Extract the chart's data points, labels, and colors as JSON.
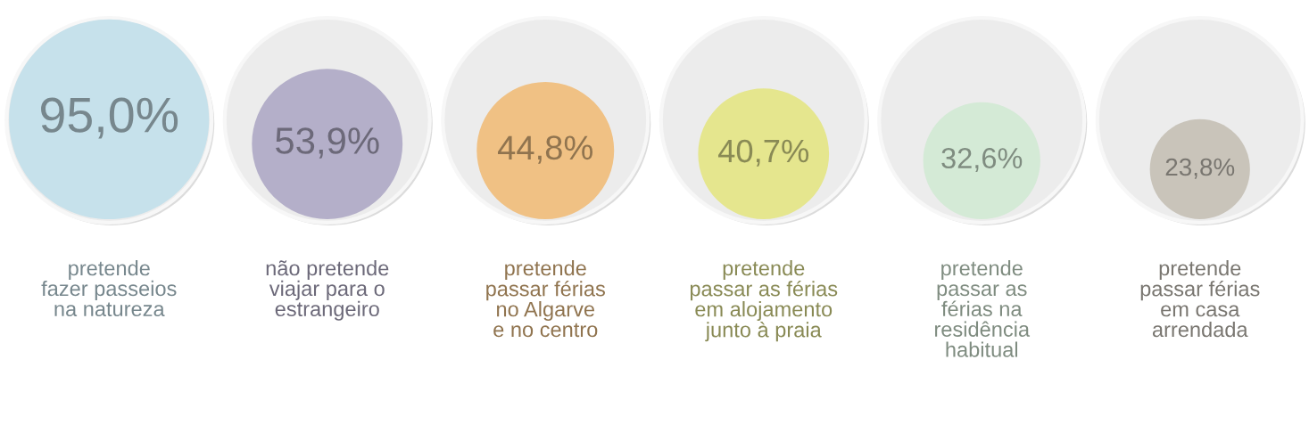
{
  "chart_data": {
    "type": "other",
    "categories": [
      "pretende\nfazer passeios\nna natureza",
      "não pretende\nviajar para o\nestrangeiro",
      "pretende\npassar férias\nno Algarve\ne no centro",
      "pretende\npassar as férias\nem alojamento\njunto à praia",
      "pretende\npassar as\nférias na\nresidência\nhabitual",
      "pretende\npassar férias\nem casa\narrendada"
    ],
    "values": [
      95.0,
      53.9,
      44.8,
      40.7,
      32.6,
      23.8
    ],
    "value_labels": [
      "95,0%",
      "53,9%",
      "44,8%",
      "40,7%",
      "32,6%",
      "23,8%"
    ],
    "colors": [
      "#c6e1eb",
      "#b4afc9",
      "#f0c184",
      "#e5e68e",
      "#d4ead6",
      "#c9c4ba"
    ]
  }
}
